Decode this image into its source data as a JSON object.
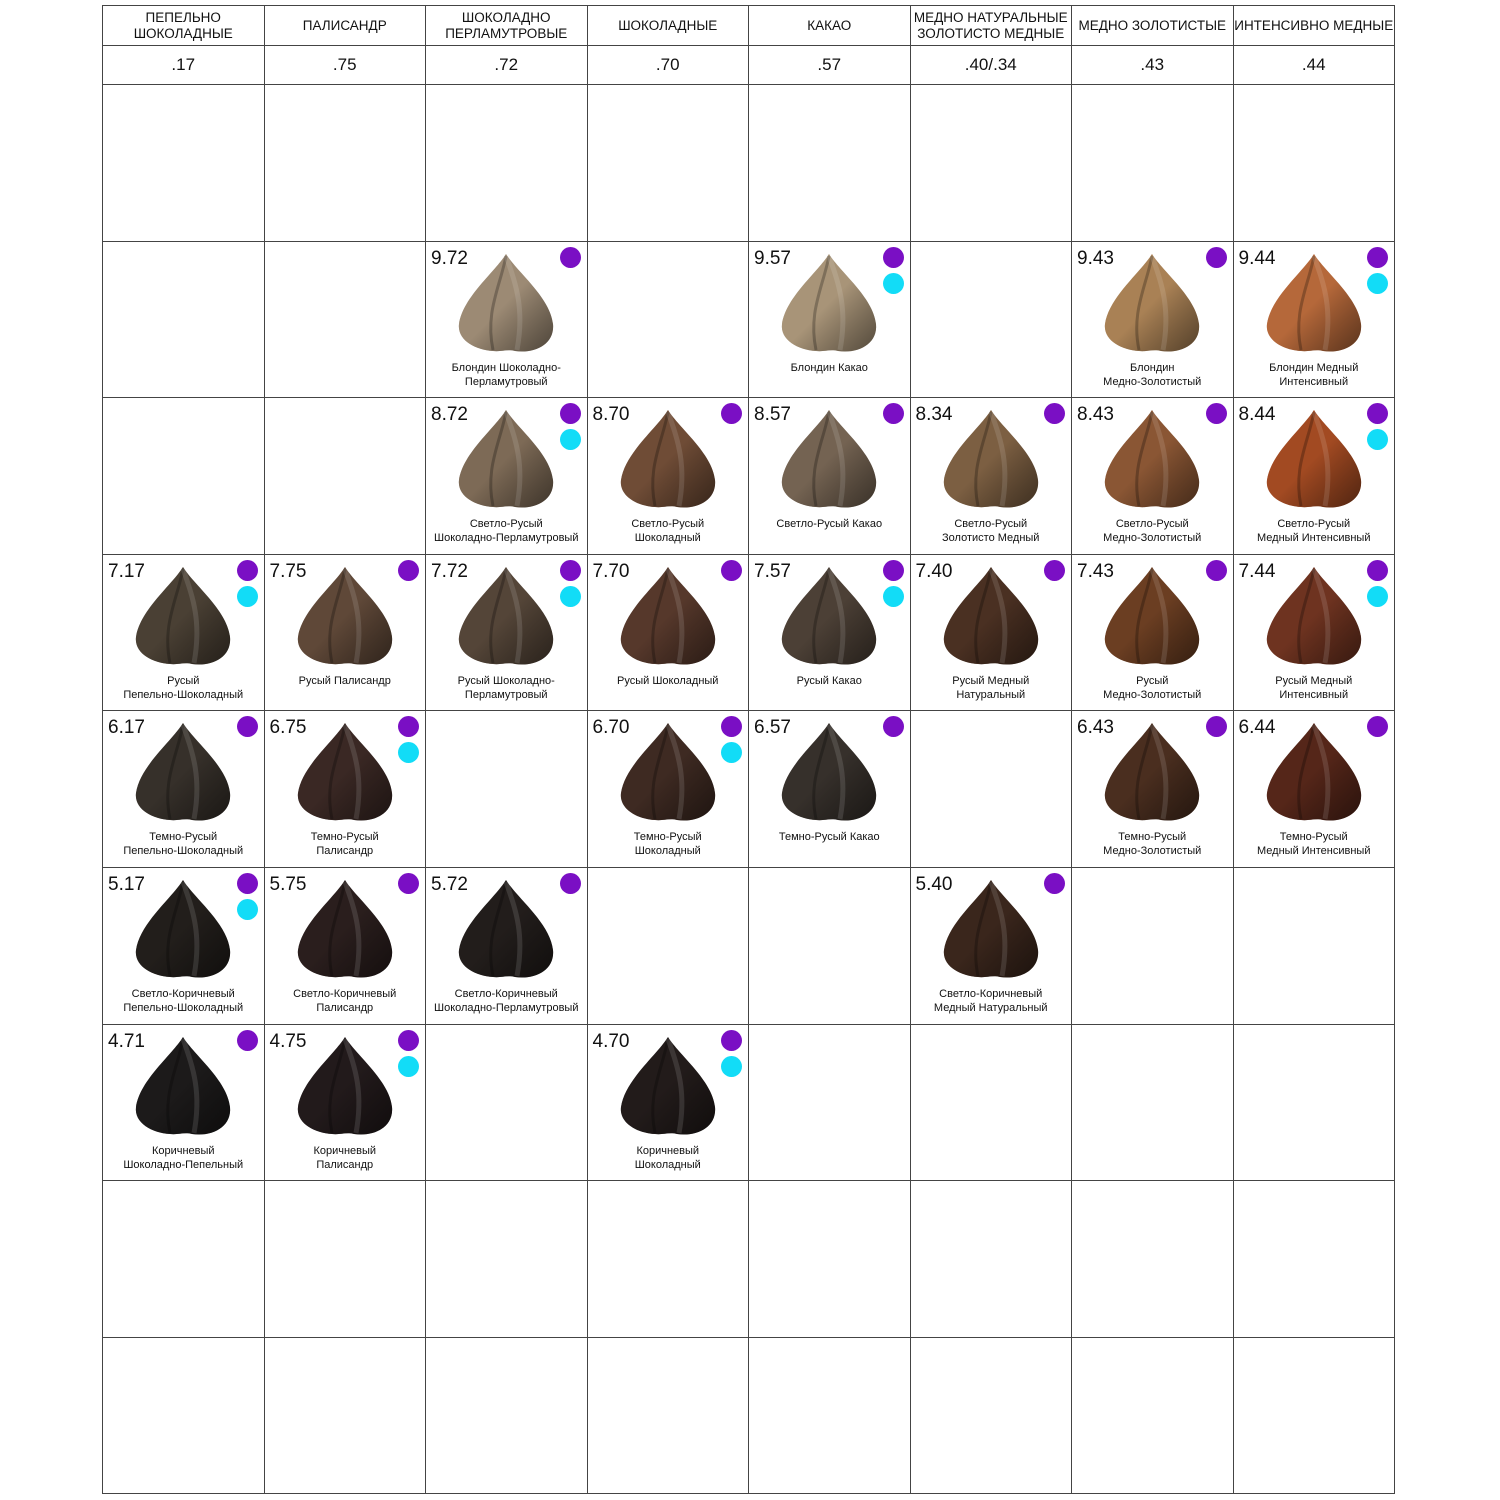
{
  "colors": {
    "purple_dot": "#7a0fc4",
    "cyan_dot": "#12dcf7",
    "grid_line": "#444444"
  },
  "columns": [
    {
      "title": "ПЕПЕЛЬНО ШОКОЛАДНЫЕ",
      "code": ".17"
    },
    {
      "title": "ПАЛИСАНДР",
      "code": ".75"
    },
    {
      "title": "ШОКОЛАДНО ПЕРЛАМУТРОВЫЕ",
      "code": ".72"
    },
    {
      "title": "ШОКОЛАДНЫЕ",
      "code": ".70"
    },
    {
      "title": "КАКАО",
      "code": ".57"
    },
    {
      "title": "МЕДНО НАТУРАЛЬНЫЕ ЗОЛОТИСТО МЕДНЫЕ",
      "code": ".40/.34"
    },
    {
      "title": "МЕДНО ЗОЛОТИСТЫЕ",
      "code": ".43"
    },
    {
      "title": "ИНТЕНСИВНО МЕДНЫЕ",
      "code": ".44"
    }
  ],
  "rows": [
    [
      null,
      null,
      null,
      null,
      null,
      null,
      null,
      null
    ],
    [
      null,
      null,
      {
        "code": "9.72",
        "name": [
          "Блондин Шоколадно-",
          "Перламутровый"
        ],
        "dots": [
          "purple"
        ],
        "swatch": "#9c8a74"
      },
      null,
      {
        "code": "9.57",
        "name": [
          "Блондин Какао"
        ],
        "dots": [
          "purple",
          "cyan"
        ],
        "swatch": "#a89478"
      },
      null,
      {
        "code": "9.43",
        "name": [
          "Блондин",
          "Медно-Золотистый"
        ],
        "dots": [
          "purple"
        ],
        "swatch": "#a98155"
      },
      {
        "code": "9.44",
        "name": [
          "Блондин Медный",
          "Интенсивный"
        ],
        "dots": [
          "purple",
          "cyan"
        ],
        "swatch": "#b5683a"
      }
    ],
    [
      null,
      null,
      {
        "code": "8.72",
        "name": [
          "Светло-Русый",
          "Шоколадно-Перламутровый"
        ],
        "dots": [
          "purple",
          "cyan"
        ],
        "swatch": "#7d6a56"
      },
      {
        "code": "8.70",
        "name": [
          "Светло-Русый",
          "Шоколадный"
        ],
        "dots": [
          "purple"
        ],
        "swatch": "#6f4c36"
      },
      {
        "code": "8.57",
        "name": [
          "Светло-Русый Какао"
        ],
        "dots": [
          "purple"
        ],
        "swatch": "#746352"
      },
      {
        "code": "8.34",
        "name": [
          "Светло-Русый",
          "Золотисто Медный"
        ],
        "dots": [
          "purple"
        ],
        "swatch": "#7c5f42"
      },
      {
        "code": "8.43",
        "name": [
          "Светло-Русый",
          "Медно-Золотистый"
        ],
        "dots": [
          "purple"
        ],
        "swatch": "#8a5634"
      },
      {
        "code": "8.44",
        "name": [
          "Светло-Русый",
          "Медный Интенсивный"
        ],
        "dots": [
          "purple",
          "cyan"
        ],
        "swatch": "#a24a22"
      }
    ],
    [
      {
        "code": "7.17",
        "name": [
          "Русый",
          "Пепельно-Шоколадный"
        ],
        "dots": [
          "purple",
          "cyan"
        ],
        "swatch": "#4a4034"
      },
      {
        "code": "7.75",
        "name": [
          "Русый Палисандр"
        ],
        "dots": [
          "purple"
        ],
        "swatch": "#5f4838"
      },
      {
        "code": "7.72",
        "name": [
          "Русый Шоколадно-",
          "Перламутровый"
        ],
        "dots": [
          "purple",
          "cyan"
        ],
        "swatch": "#544538"
      },
      {
        "code": "7.70",
        "name": [
          "Русый Шоколадный"
        ],
        "dots": [
          "purple"
        ],
        "swatch": "#56382b"
      },
      {
        "code": "7.57",
        "name": [
          "Русый Какао"
        ],
        "dots": [
          "purple",
          "cyan"
        ],
        "swatch": "#4c4036"
      },
      {
        "code": "7.40",
        "name": [
          "Русый Медный",
          "Натуральный"
        ],
        "dots": [
          "purple"
        ],
        "swatch": "#4a3022"
      },
      {
        "code": "7.43",
        "name": [
          "Русый",
          "Медно-Золотистый"
        ],
        "dots": [
          "purple"
        ],
        "swatch": "#6b3e22"
      },
      {
        "code": "7.44",
        "name": [
          "Русый Медный",
          "Интенсивный"
        ],
        "dots": [
          "purple",
          "cyan"
        ],
        "swatch": "#6e3320"
      }
    ],
    [
      {
        "code": "6.17",
        "name": [
          "Темно-Русый",
          "Пепельно-Шоколадный"
        ],
        "dots": [
          "purple"
        ],
        "swatch": "#36302a"
      },
      {
        "code": "6.75",
        "name": [
          "Темно-Русый",
          "Палисандр"
        ],
        "dots": [
          "purple",
          "cyan"
        ],
        "swatch": "#3a2824"
      },
      null,
      {
        "code": "6.70",
        "name": [
          "Темно-Русый",
          "Шоколадный"
        ],
        "dots": [
          "purple",
          "cyan"
        ],
        "swatch": "#3e2a22"
      },
      {
        "code": "6.57",
        "name": [
          "Темно-Русый Какао"
        ],
        "dots": [
          "purple"
        ],
        "swatch": "#36302b"
      },
      null,
      {
        "code": "6.43",
        "name": [
          "Темно-Русый",
          "Медно-Золотистый"
        ],
        "dots": [
          "purple"
        ],
        "swatch": "#4a2e1f"
      },
      {
        "code": "6.44",
        "name": [
          "Темно-Русый",
          "Медный Интенсивный"
        ],
        "dots": [
          "purple"
        ],
        "swatch": "#552619"
      }
    ],
    [
      {
        "code": "5.17",
        "name": [
          "Светло-Коричневый",
          "Пепельно-Шоколадный"
        ],
        "dots": [
          "purple",
          "cyan"
        ],
        "swatch": "#221e1b"
      },
      {
        "code": "5.75",
        "name": [
          "Светло-Коричневый",
          "Палисандр"
        ],
        "dots": [
          "purple"
        ],
        "swatch": "#2a1e1d"
      },
      {
        "code": "5.72",
        "name": [
          "Светло-Коричневый",
          "Шоколадно-Перламутровый"
        ],
        "dots": [
          "purple"
        ],
        "swatch": "#221d1b"
      },
      null,
      null,
      {
        "code": "5.40",
        "name": [
          "Светло-Коричневый",
          "Медный Натуральный"
        ],
        "dots": [
          "purple"
        ],
        "swatch": "#3a261c"
      },
      null,
      null
    ],
    [
      {
        "code": "4.71",
        "name": [
          "Коричневый",
          "Шоколадно-Пепельный"
        ],
        "dots": [
          "purple"
        ],
        "swatch": "#1c1a1a"
      },
      {
        "code": "4.75",
        "name": [
          "Коричневый",
          "Палисандр"
        ],
        "dots": [
          "purple",
          "cyan"
        ],
        "swatch": "#221a1b"
      },
      null,
      {
        "code": "4.70",
        "name": [
          "Коричневый",
          "Шоколадный"
        ],
        "dots": [
          "purple",
          "cyan"
        ],
        "swatch": "#221b1a"
      },
      null,
      null,
      null,
      null
    ],
    [
      null,
      null,
      null,
      null,
      null,
      null,
      null,
      null
    ],
    [
      null,
      null,
      null,
      null,
      null,
      null,
      null,
      null
    ]
  ]
}
